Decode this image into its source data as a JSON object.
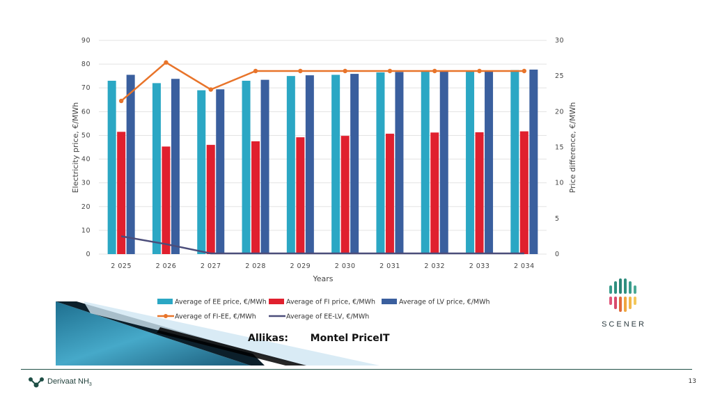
{
  "chart_data": {
    "type": "bar",
    "categories": [
      "2 025",
      "2 026",
      "2 027",
      "2 028",
      "2 029",
      "2 030",
      "2 031",
      "2 032",
      "2 033",
      "2 034"
    ],
    "xlabel": "Years",
    "ylabel": "Electricity price, €/MWh",
    "y2label": "Price difference, €/MWh",
    "ylim": [
      0,
      90
    ],
    "y2lim": [
      0,
      30
    ],
    "yticks": [
      0,
      10,
      20,
      30,
      40,
      50,
      60,
      70,
      80,
      90
    ],
    "y2ticks": [
      0,
      5,
      10,
      15,
      20,
      25,
      30
    ],
    "grid": true,
    "legend_position": "bottom",
    "series": [
      {
        "name": "Average of EE price, €/MWh",
        "kind": "bar",
        "axis": "left",
        "color": "#2BA7C4",
        "values": [
          73,
          72,
          69,
          73,
          75,
          75.5,
          76.5,
          77,
          77.2,
          77.5
        ]
      },
      {
        "name": "Average of FI price, €/MWh",
        "kind": "bar",
        "axis": "left",
        "color": "#E0202E",
        "values": [
          51.5,
          45.3,
          46,
          47.5,
          49.2,
          49.8,
          50.7,
          51.2,
          51.3,
          51.7
        ]
      },
      {
        "name": "Average of LV price, €/MWh",
        "kind": "bar",
        "axis": "left",
        "color": "#3A5F9E",
        "values": [
          75.5,
          73.8,
          69.4,
          73.4,
          75.3,
          75.9,
          76.7,
          77.2,
          77.4,
          77.7
        ]
      },
      {
        "name": "Average of FI-EE, €/MWh",
        "kind": "line",
        "axis": "right",
        "color": "#E8742A",
        "values": [
          21.5,
          26.9,
          23.1,
          25.7,
          25.7,
          25.7,
          25.7,
          25.7,
          25.7,
          25.7
        ]
      },
      {
        "name": "Average of EE-LV, €/MWh",
        "kind": "line",
        "axis": "right",
        "color": "#4B4D7A",
        "values": [
          2.5,
          1.4,
          0.1,
          0.1,
          0.1,
          0.1,
          0.1,
          0.1,
          0.1,
          0.1
        ]
      }
    ]
  },
  "source": {
    "label": "Allikas:",
    "value": "Montel PriceIT"
  },
  "branding": {
    "company": "Derivaat NH",
    "company_sub": "3",
    "partner": "SCENER"
  },
  "page_number": "13"
}
